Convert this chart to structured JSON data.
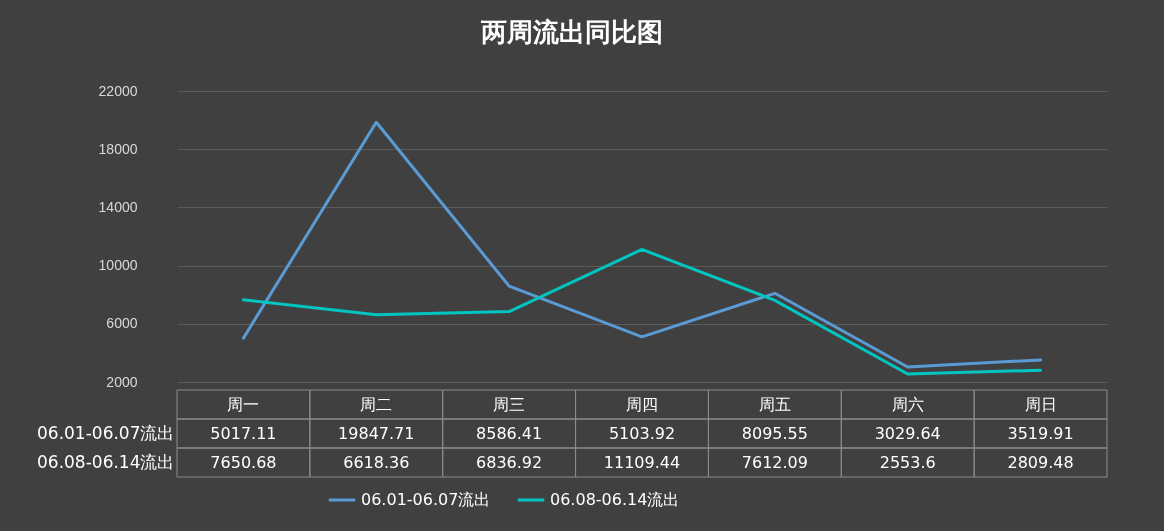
{
  "chart_data": {
    "type": "line",
    "title": "两周流出同比图",
    "categories": [
      "周一",
      "周二",
      "周三",
      "周四",
      "周五",
      "周六",
      "周日"
    ],
    "series": [
      {
        "name": "06.01-06.07流出",
        "color": "#5b9bd5",
        "values": [
          5017.11,
          19847.71,
          8586.41,
          5103.92,
          8095.55,
          3029.64,
          3519.91
        ]
      },
      {
        "name": "06.08-06.14流出",
        "color": "#00c5c0",
        "values": [
          7650.68,
          6618.36,
          6836.92,
          11109.44,
          7612.09,
          2553.6,
          2809.48
        ]
      }
    ],
    "ylim": [
      2000,
      22000
    ],
    "yticks": [
      2000,
      6000,
      10000,
      14000,
      18000,
      22000
    ],
    "grid": "y",
    "legend": "bottom",
    "data_labels": true,
    "marker": "none",
    "line_style": "solid"
  }
}
